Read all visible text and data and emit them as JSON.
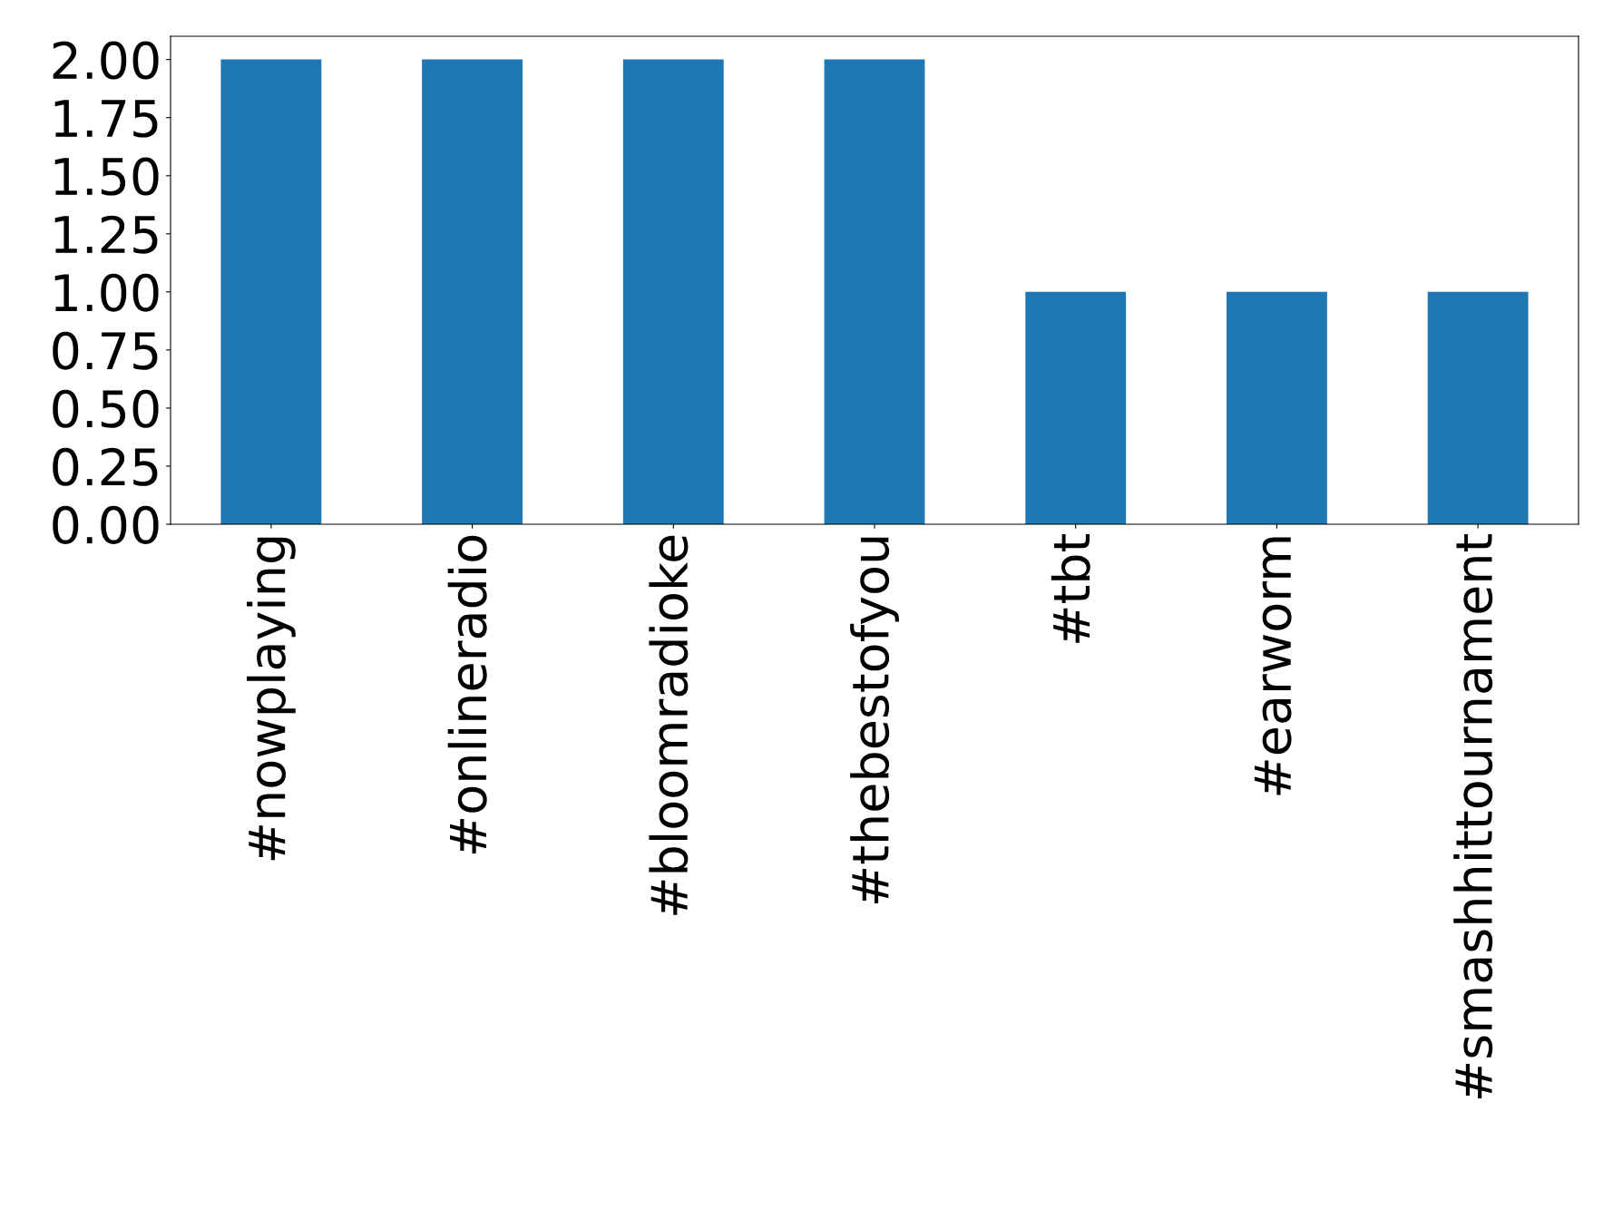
{
  "chart_data": {
    "type": "bar",
    "categories": [
      "#nowplaying",
      "#onlineradio",
      "#bloomradioke",
      "#thebestofyou",
      "#tbt",
      "#earworm",
      "#smashhittournament"
    ],
    "values": [
      2,
      2,
      2,
      2,
      1,
      1,
      1
    ],
    "color": "#1f77b4",
    "ylim": [
      0,
      2.1
    ],
    "yticks": [
      {
        "value": 0,
        "label": "0.00"
      },
      {
        "value": 0.25,
        "label": "0.25"
      },
      {
        "value": 0.5,
        "label": "0.50"
      },
      {
        "value": 0.75,
        "label": "0.75"
      },
      {
        "value": 1,
        "label": "1.00"
      },
      {
        "value": 1.25,
        "label": "1.25"
      },
      {
        "value": 1.5,
        "label": "1.50"
      },
      {
        "value": 1.75,
        "label": "1.75"
      },
      {
        "value": 2,
        "label": "2.00"
      }
    ],
    "grid": false,
    "legend": false
  }
}
